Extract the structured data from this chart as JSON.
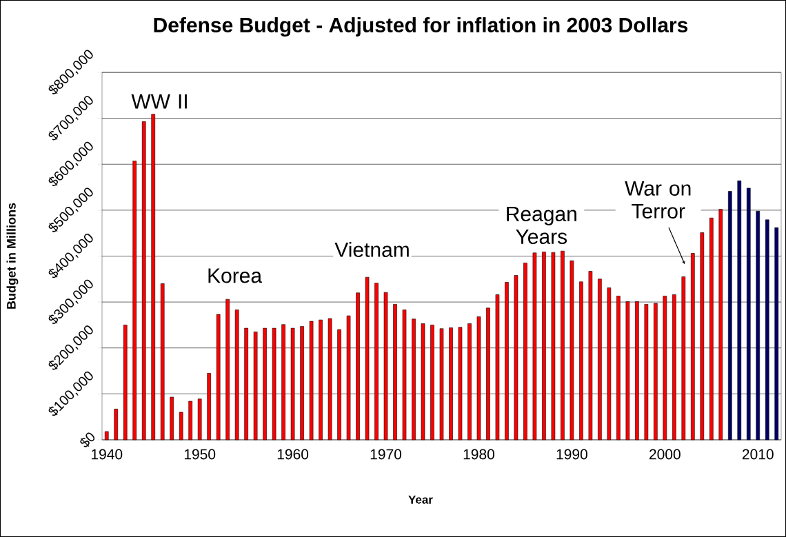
{
  "chart_data": {
    "type": "bar",
    "title": "Defense Budget - Adjusted for inflation in 2003 Dollars",
    "xlabel": "Year",
    "ylabel": "Budget in Millions",
    "xlim": [
      1939.5,
      2012.5
    ],
    "xticks": [
      1940,
      1950,
      1960,
      1970,
      1980,
      1990,
      2000,
      2010
    ],
    "ylim": [
      0,
      800000
    ],
    "yticks": [
      {
        "value": 0,
        "label": "$0"
      },
      {
        "value": 100000,
        "label": "$100,000"
      },
      {
        "value": 200000,
        "label": "$200,000"
      },
      {
        "value": 300000,
        "label": "$300,000"
      },
      {
        "value": 400000,
        "label": "$400,000"
      },
      {
        "value": 500000,
        "label": "$500,000"
      },
      {
        "value": 600000,
        "label": "$600,000"
      },
      {
        "value": 700000,
        "label": "$700,000"
      },
      {
        "value": 800000,
        "label": "$800,000"
      }
    ],
    "grid": "y",
    "x": [
      1940,
      1941,
      1942,
      1943,
      1944,
      1945,
      1946,
      1947,
      1948,
      1949,
      1950,
      1951,
      1952,
      1953,
      1954,
      1955,
      1956,
      1957,
      1958,
      1959,
      1960,
      1961,
      1962,
      1963,
      1964,
      1965,
      1966,
      1967,
      1968,
      1969,
      1970,
      1971,
      1972,
      1973,
      1974,
      1975,
      1976,
      1977,
      1978,
      1979,
      1980,
      1981,
      1982,
      1983,
      1984,
      1985,
      1986,
      1987,
      1988,
      1989,
      1990,
      1991,
      1992,
      1993,
      1994,
      1995,
      1996,
      1997,
      1998,
      1999,
      2000,
      2001,
      2002,
      2003,
      2004,
      2005,
      2006,
      2007,
      2008,
      2009,
      2010,
      2011,
      2012
    ],
    "values": [
      18000,
      67000,
      250000,
      607000,
      693000,
      709000,
      340000,
      93000,
      60000,
      84000,
      89000,
      145000,
      273000,
      306000,
      283000,
      243000,
      235000,
      243000,
      243000,
      251000,
      243000,
      247000,
      258000,
      261000,
      264000,
      240000,
      270000,
      320000,
      354000,
      341000,
      321000,
      295000,
      283000,
      263000,
      253000,
      250000,
      242000,
      244000,
      245000,
      253000,
      268000,
      287000,
      316000,
      343000,
      358000,
      385000,
      407000,
      409000,
      408000,
      411000,
      390000,
      344000,
      367000,
      350000,
      331000,
      313000,
      301000,
      301000,
      295000,
      297000,
      313000,
      316000,
      355000,
      406000,
      451000,
      483000,
      502000,
      541000,
      564000,
      548000,
      498000,
      479000,
      462000
    ],
    "colors": [
      "#ff0000",
      "#ff0000",
      "#ff0000",
      "#ff0000",
      "#ff0000",
      "#ff0000",
      "#ff0000",
      "#ff0000",
      "#ff0000",
      "#ff0000",
      "#ff0000",
      "#ff0000",
      "#ff0000",
      "#ff0000",
      "#ff0000",
      "#ff0000",
      "#ff0000",
      "#ff0000",
      "#ff0000",
      "#ff0000",
      "#ff0000",
      "#ff0000",
      "#ff0000",
      "#ff0000",
      "#ff0000",
      "#ff0000",
      "#ff0000",
      "#ff0000",
      "#ff0000",
      "#ff0000",
      "#ff0000",
      "#ff0000",
      "#ff0000",
      "#ff0000",
      "#ff0000",
      "#ff0000",
      "#ff0000",
      "#ff0000",
      "#ff0000",
      "#ff0000",
      "#ff0000",
      "#ff0000",
      "#ff0000",
      "#ff0000",
      "#ff0000",
      "#ff0000",
      "#ff0000",
      "#ff0000",
      "#ff0000",
      "#ff0000",
      "#ff0000",
      "#ff0000",
      "#ff0000",
      "#ff0000",
      "#ff0000",
      "#ff0000",
      "#ff0000",
      "#ff0000",
      "#ff0000",
      "#ff0000",
      "#ff0000",
      "#ff0000",
      "#ff0000",
      "#ff0000",
      "#ff0000",
      "#ff0000",
      "#ff0000",
      "#000066",
      "#000066",
      "#000066",
      "#000066",
      "#000066",
      "#000066"
    ],
    "annotations": [
      "WW II",
      "Korea",
      "Vietnam",
      "Reagan Years",
      "War on Terror"
    ]
  }
}
